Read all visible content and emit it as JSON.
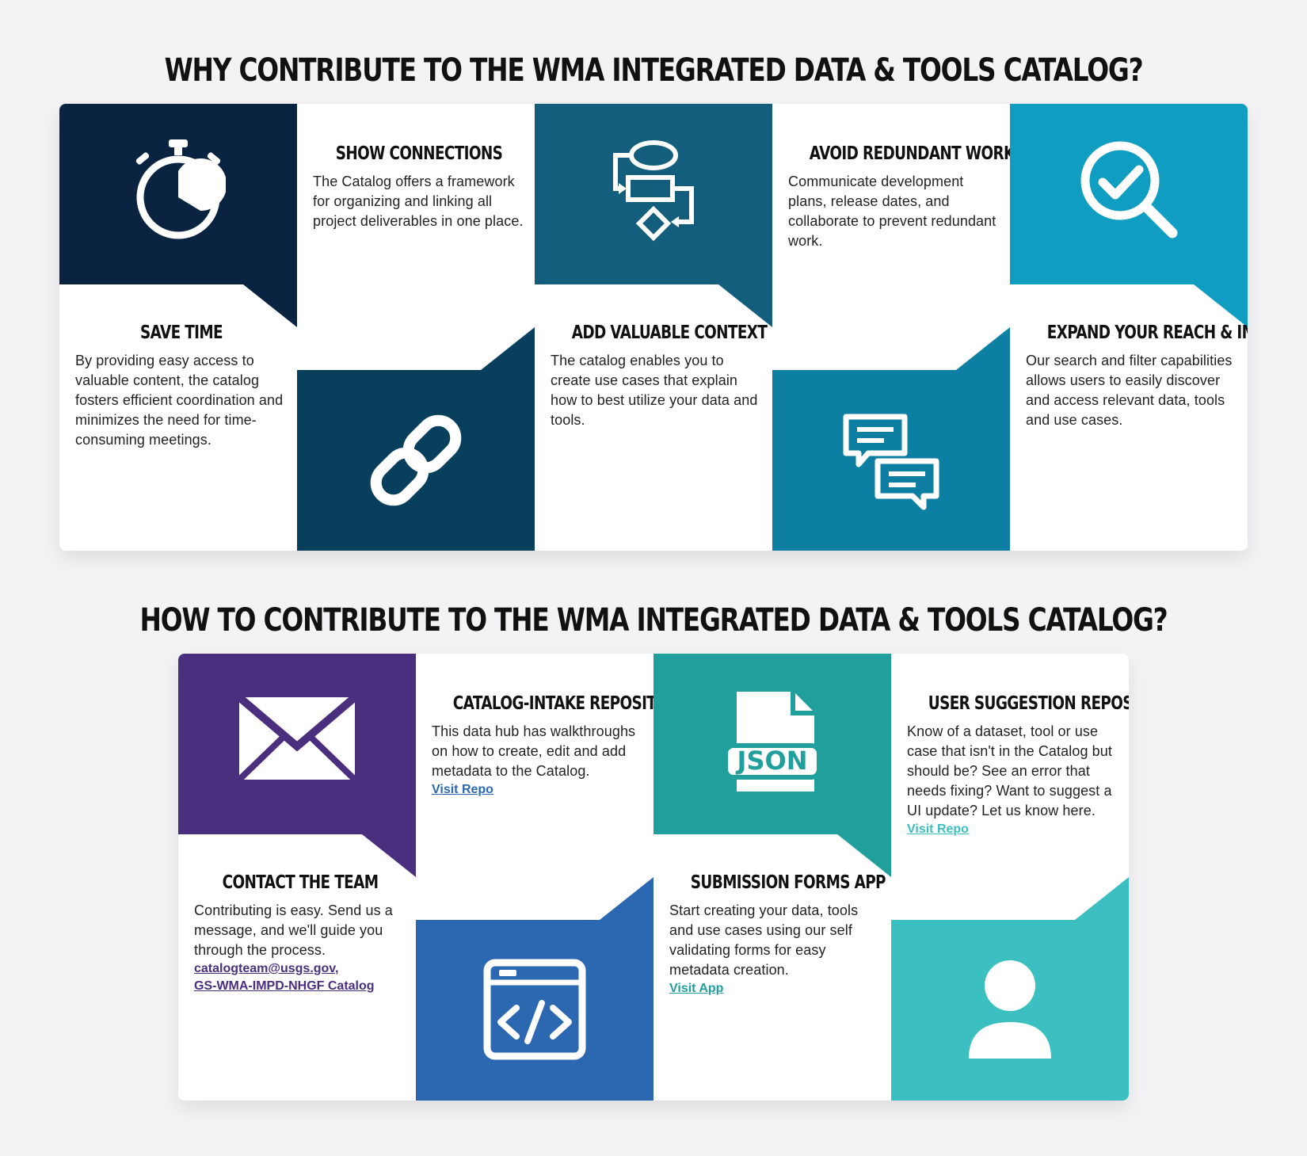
{
  "why": {
    "heading": "WHY CONTRIBUTE TO THE WMA INTEGRATED DATA & TOOLS CATALOG?",
    "cards": [
      {
        "title": "SAVE TIME",
        "body": "By providing easy access to valuable content, the catalog fosters efficient coordination and minimizes the need for time-consuming meetings.",
        "color": "#0a2340",
        "icon": "stopwatch-icon"
      },
      {
        "title": "SHOW CONNECTIONS",
        "body": "The Catalog offers a framework for organizing and linking all project deliverables in one place.",
        "color": "#073f5d",
        "icon": "link-icon"
      },
      {
        "title": "ADD VALUABLE CONTEXT",
        "body": "The catalog enables you to create use cases that explain how to best utilize your data and tools.",
        "color": "#125e7c",
        "icon": "flowchart-icon"
      },
      {
        "title": "AVOID REDUNDANT WORK",
        "body": "Communicate development plans, release dates, and collaborate to prevent redundant work.",
        "color": "#0d7fa2",
        "icon": "chat-bubbles-icon"
      },
      {
        "title": "EXPAND YOUR REACH & IMPACT",
        "body": "Our search and filter capabilities allows users to easily discover and access relevant data, tools and use cases.",
        "color": "#0f9dc1",
        "icon": "search-check-icon"
      }
    ]
  },
  "how": {
    "heading": "HOW TO CONTRIBUTE TO THE WMA INTEGRATED DATA & TOOLS CATALOG?",
    "cards": [
      {
        "title": "CONTACT THE TEAM",
        "body": "Contributing is easy. Send us a message, and we'll guide you through the process.",
        "color": "#4a2f7e",
        "link_color": "#4a2f7e",
        "links": [
          "catalogteam@usgs.gov,",
          "GS-WMA-IMPD-NHGF Catalog"
        ],
        "icon": "envelope-icon"
      },
      {
        "title": "CATALOG-INTAKE REPOSITORY",
        "body": "This data hub has walkthroughs on how to create, edit and add metadata to the Catalog.",
        "color": "#2b68b1",
        "link_color": "#2b68b1",
        "links": [
          "Visit Repo"
        ],
        "icon": "code-window-icon"
      },
      {
        "title": "SUBMISSION FORMS APP",
        "body": "Start creating your data, tools and use cases using our self validating forms for easy metadata creation.",
        "color": "#209f9c",
        "link_color": "#209f9c",
        "links": [
          "Visit App"
        ],
        "icon": "json-file-icon",
        "icon_text": "JSON"
      },
      {
        "title": "USER SUGGESTION REPOSITORY",
        "body": "Know of a dataset, tool or use case that isn't in the Catalog but should be? See an error that needs fixing? Want to suggest a UI update?  Let us know here.",
        "color": "#3bbfc0",
        "link_color": "#3bbfc0",
        "links": [
          "Visit Repo"
        ],
        "icon": "user-icon"
      }
    ]
  }
}
